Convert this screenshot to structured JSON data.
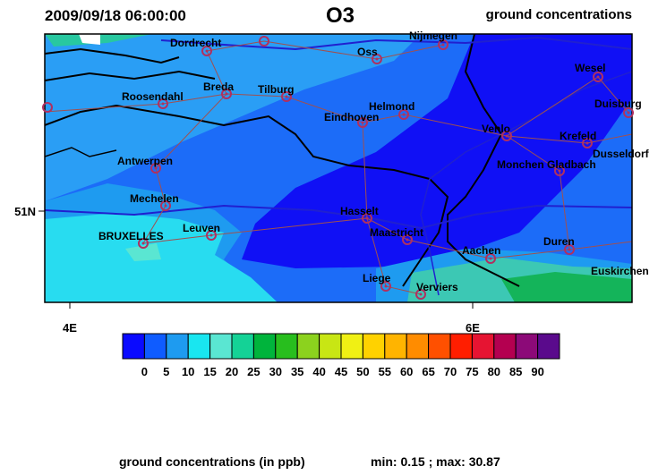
{
  "header": {
    "date": "2009/09/18 06:00:00",
    "title": "O3",
    "subtitle": "ground concentrations"
  },
  "map": {
    "cities": [
      "Dordrecht",
      "Nijmegen",
      "Oss",
      "Wesel",
      "Roosendahl",
      "Breda",
      "Tilburg",
      "Helmond",
      "Eindhoven",
      "Duisburg",
      "Venlo",
      "Krefeld",
      "Dusseldorf",
      "Antwerpen",
      "Monchen Gladbach",
      "Mechelen",
      "Hasselt",
      "Maastricht",
      "BRUXELLES",
      "Leuven",
      "Duren",
      "Aachen",
      "Euskirchen",
      "Liege",
      "Verviers"
    ],
    "x_labels": [
      "4E",
      "6E"
    ],
    "y_labels": [
      "51N"
    ]
  },
  "colorbar": {
    "ticks": [
      0,
      5,
      10,
      15,
      20,
      25,
      30,
      35,
      40,
      45,
      50,
      55,
      60,
      65,
      70,
      75,
      80,
      85,
      90
    ],
    "colors": [
      "#0a0aff",
      "#0f5cff",
      "#1e9bf0",
      "#19e6f0",
      "#5ae6d2",
      "#14d296",
      "#00b43c",
      "#28be1e",
      "#8cd21e",
      "#c8e614",
      "#f0f014",
      "#ffd200",
      "#ffb400",
      "#ff8c00",
      "#ff5000",
      "#ff1e00",
      "#e61432",
      "#b40050",
      "#8c0a78",
      "#5a0a8c"
    ]
  },
  "footer": {
    "units": "ground concentrations (in ppb)",
    "range": "min: 0.15 ; max: 30.87"
  }
}
